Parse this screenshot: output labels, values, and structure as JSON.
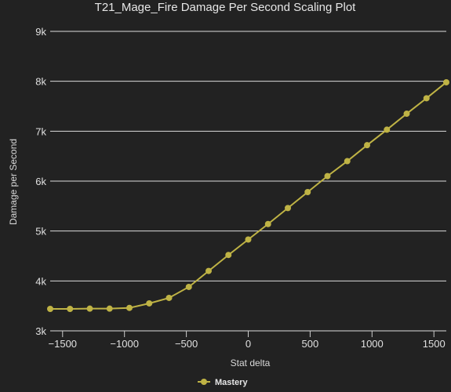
{
  "chart_data": {
    "type": "line",
    "title": "T21_Mage_Fire Damage Per Second Scaling Plot",
    "xlabel": "Stat delta",
    "ylabel": "Damage per Second",
    "xlim": [
      -1600,
      1600
    ],
    "ylim": [
      3000,
      9000
    ],
    "xticks": [
      -1500,
      -1000,
      -500,
      0,
      500,
      1000,
      1500
    ],
    "xtick_labels": [
      "−1500",
      "−1000",
      "−500",
      "0",
      "500",
      "1000",
      "1500"
    ],
    "yticks": [
      3000,
      4000,
      5000,
      6000,
      7000,
      8000,
      9000
    ],
    "ytick_labels": [
      "3k",
      "4k",
      "5k",
      "6k",
      "7k",
      "8k",
      "9k"
    ],
    "grid": true,
    "legend_position": "bottom-center",
    "series": [
      {
        "name": "Mastery",
        "color": "#bfb345",
        "x": [
          -1600,
          -1440,
          -1280,
          -1120,
          -960,
          -800,
          -640,
          -480,
          -320,
          -160,
          0,
          160,
          320,
          480,
          640,
          800,
          960,
          1120,
          1280,
          1440,
          1600
        ],
        "y": [
          3440,
          3440,
          3445,
          3445,
          3460,
          3550,
          3660,
          3880,
          4200,
          4520,
          4830,
          5140,
          5460,
          5780,
          6100,
          6400,
          6720,
          7030,
          7350,
          7660,
          7980
        ]
      }
    ]
  }
}
